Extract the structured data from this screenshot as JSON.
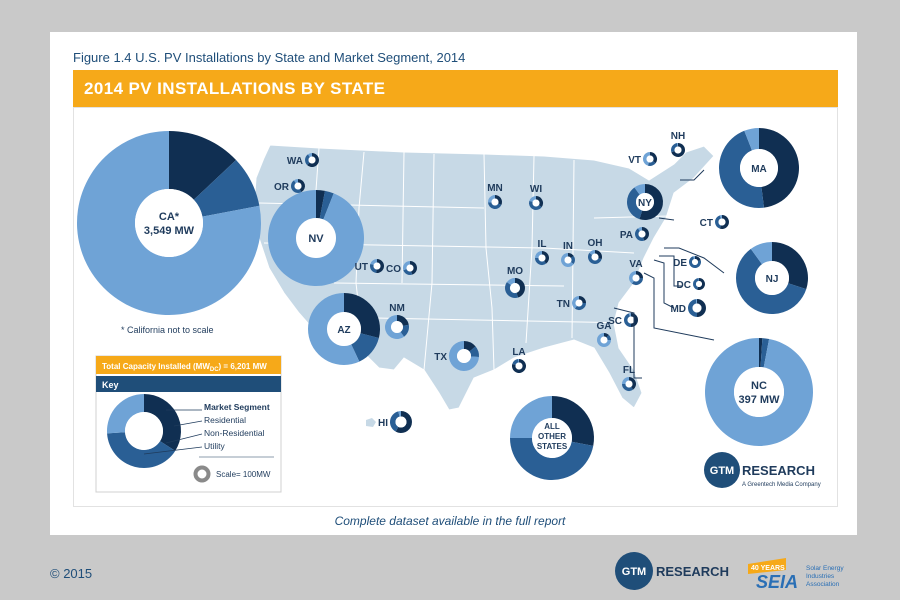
{
  "figure_title": "Figure 1.4  U.S. PV Installations by State and Market Segment, 2014",
  "banner_title": "2014 PV INSTALLATIONS BY STATE",
  "footnote": "* California not to scale",
  "colors": {
    "residential": "#102f52",
    "non_residential": "#2a5f95",
    "utility": "#6fa3d6",
    "banner": "#f6a919",
    "map_states": "#c7d9e6"
  },
  "states": [
    {
      "code": "CA*",
      "label_line2": "3,549 MW",
      "shares": [
        0.13,
        0.09,
        0.78
      ]
    },
    {
      "code": "NV",
      "shares": [
        0.03,
        0.03,
        0.94
      ]
    },
    {
      "code": "AZ",
      "shares": [
        0.29,
        0.14,
        0.57
      ]
    },
    {
      "code": "WA",
      "shares": [
        0.62,
        0.28,
        0.1
      ]
    },
    {
      "code": "OR",
      "shares": [
        0.42,
        0.48,
        0.1
      ]
    },
    {
      "code": "UT",
      "shares": [
        0.52,
        0.28,
        0.2
      ]
    },
    {
      "code": "CO",
      "shares": [
        0.45,
        0.25,
        0.3
      ]
    },
    {
      "code": "NM",
      "shares": [
        0.22,
        0.18,
        0.6
      ]
    },
    {
      "code": "TX",
      "shares": [
        0.14,
        0.12,
        0.74
      ]
    },
    {
      "code": "HI",
      "shares": [
        0.58,
        0.38,
        0.04
      ]
    },
    {
      "code": "MN",
      "shares": [
        0.32,
        0.42,
        0.26
      ]
    },
    {
      "code": "WI",
      "shares": [
        0.35,
        0.45,
        0.2
      ]
    },
    {
      "code": "IL",
      "shares": [
        0.4,
        0.35,
        0.25
      ]
    },
    {
      "code": "IN",
      "shares": [
        0.15,
        0.2,
        0.65
      ]
    },
    {
      "code": "OH",
      "shares": [
        0.3,
        0.55,
        0.15
      ]
    },
    {
      "code": "MO",
      "shares": [
        0.45,
        0.4,
        0.15
      ]
    },
    {
      "code": "TN",
      "shares": [
        0.25,
        0.35,
        0.4
      ]
    },
    {
      "code": "LA",
      "shares": [
        0.8,
        0.18,
        0.02
      ]
    },
    {
      "code": "GA",
      "shares": [
        0.12,
        0.13,
        0.75
      ]
    },
    {
      "code": "SC",
      "shares": [
        0.5,
        0.45,
        0.05
      ]
    },
    {
      "code": "FL",
      "shares": [
        0.4,
        0.35,
        0.25
      ]
    },
    {
      "code": "VA",
      "shares": [
        0.25,
        0.35,
        0.4
      ]
    },
    {
      "code": "PA",
      "shares": [
        0.45,
        0.45,
        0.1
      ]
    },
    {
      "code": "NY",
      "shares": [
        0.55,
        0.35,
        0.1
      ]
    },
    {
      "code": "VT",
      "shares": [
        0.35,
        0.2,
        0.45
      ]
    },
    {
      "code": "NH",
      "shares": [
        0.7,
        0.28,
        0.02
      ]
    },
    {
      "code": "MA",
      "shares": [
        0.48,
        0.46,
        0.06
      ]
    },
    {
      "code": "CT",
      "shares": [
        0.55,
        0.4,
        0.05
      ]
    },
    {
      "code": "NJ",
      "shares": [
        0.3,
        0.6,
        0.1
      ]
    },
    {
      "code": "DE",
      "shares": [
        0.2,
        0.75,
        0.05
      ]
    },
    {
      "code": "DC",
      "shares": [
        0.55,
        0.44,
        0.01
      ]
    },
    {
      "code": "MD",
      "shares": [
        0.5,
        0.48,
        0.02
      ]
    },
    {
      "code": "NC",
      "label_line2": "397 MW",
      "shares": [
        0.01,
        0.02,
        0.97
      ]
    },
    {
      "code": "ALL OTHER STATES",
      "label_lines": [
        "ALL",
        "OTHER",
        "STATES"
      ],
      "shares": [
        0.28,
        0.47,
        0.25
      ]
    }
  ],
  "legend": {
    "total": "Total Capacity Installed (MW",
    "total_sub": "DC",
    "total_value": ") = 6,201 MW",
    "key_title": "Key",
    "segment_title": "Market Segment",
    "segments": [
      "Residential",
      "Non-Residential",
      "Utility"
    ],
    "scale": "Scale= 100MW"
  },
  "gtm_logo": {
    "mark": "GTM",
    "name": "RESEARCH",
    "tagline": "A Greentech Media Company"
  },
  "dataset_note": "Complete dataset available in the full report",
  "copyright": "© 2015",
  "footer_logos": {
    "gtm_mark": "GTM",
    "gtm_name": "RESEARCH",
    "seia_badge": "40 YEARS",
    "seia": "SEIA",
    "seia_line1": "Solar Energy",
    "seia_line2": "Industries",
    "seia_line3": "Association"
  }
}
